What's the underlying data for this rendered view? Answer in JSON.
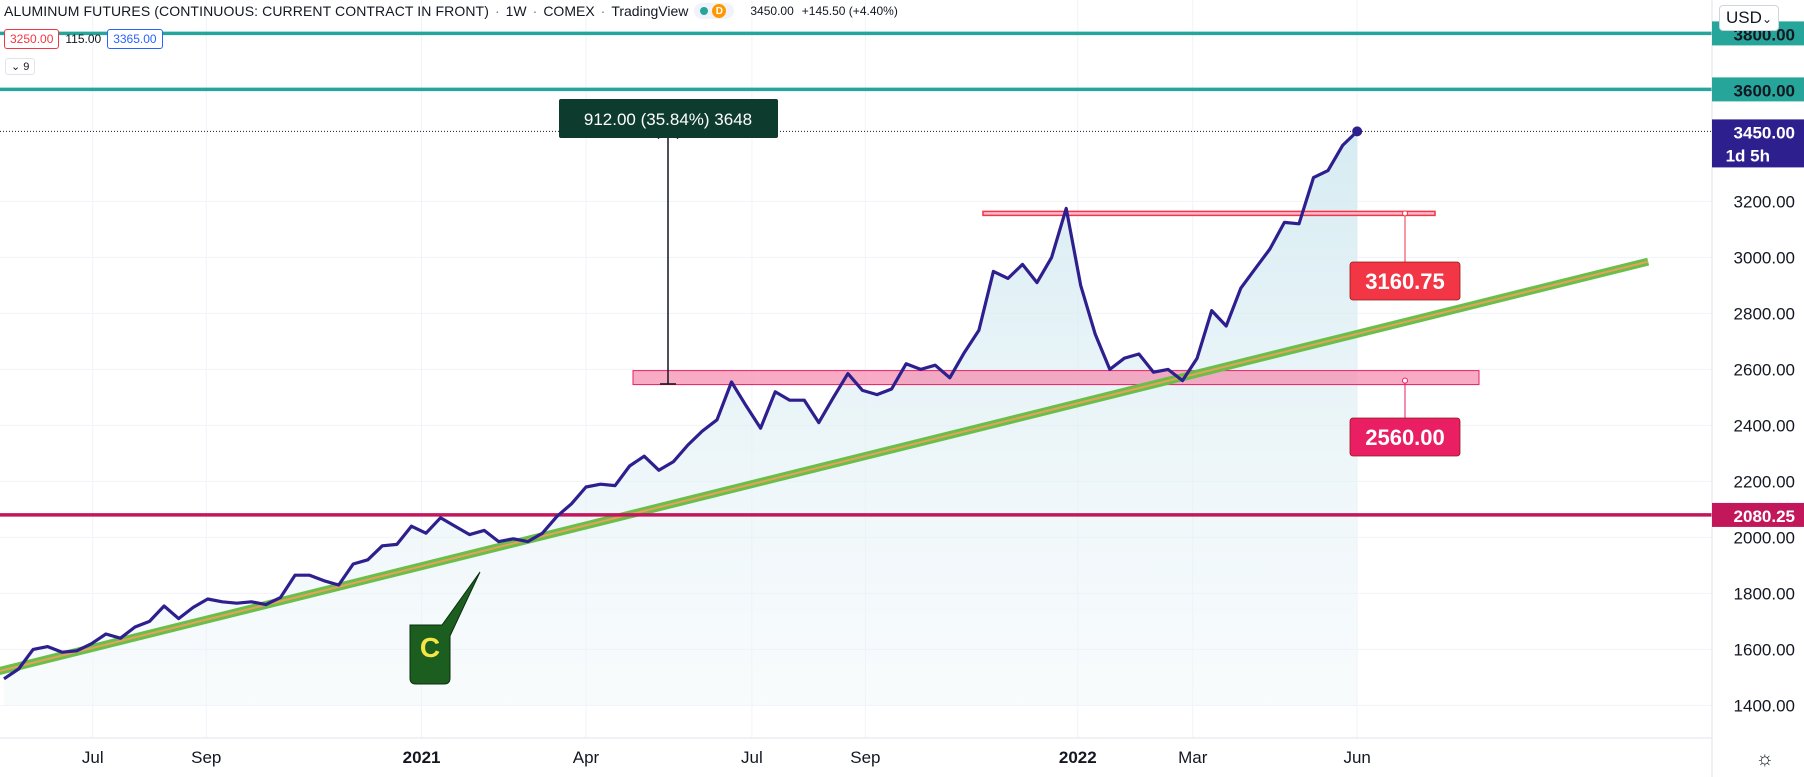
{
  "header": {
    "symbol_title": "ALUMINUM FUTURES (CONTINUOUS: CURRENT CONTRACT IN FRONT)",
    "interval": "1W",
    "exchange": "COMEX",
    "provider": "TradingView",
    "badge_letter": "D",
    "last_price": "3450.00",
    "change": "+145.50 (+4.40%)"
  },
  "quote_box": {
    "bid": "3250.00",
    "spread": "115.00",
    "ask": "3365.00"
  },
  "indicator_toggle": "9",
  "currency": "USD",
  "icons": {
    "settings": "gear-icon",
    "live": "live-dot-icon",
    "dropdown": "chevron-down-icon"
  },
  "colors": {
    "price_line": "#2e1f8f",
    "area_fill": "#d8ecf3",
    "teal_level": "#26a69a",
    "magenta_level": "#c2185b",
    "resistance": "#f23645",
    "support": "#e91e63",
    "trendline": "#6abf4b",
    "callout": "#1b5e20",
    "measure_label": "#0d3b2e"
  },
  "chart_data": {
    "type": "line",
    "title": "",
    "xlabel": "",
    "ylabel": "",
    "ylim": [
      1330,
      3950
    ],
    "x_tick_labels": [
      "Jul",
      "Sep",
      "2021",
      "Apr",
      "Jul",
      "Sep",
      "2022",
      "Mar",
      "Jun"
    ],
    "y_tick_labels": [
      "1400.00",
      "1600.00",
      "1800.00",
      "2000.00",
      "2200.00",
      "2400.00",
      "2600.00",
      "2800.00",
      "3000.00",
      "3200.00"
    ],
    "series": [
      {
        "x": [
          0,
          1,
          2,
          3,
          4,
          5,
          6,
          7,
          8,
          9,
          10,
          11,
          12,
          13,
          14,
          15,
          16,
          17,
          18,
          19,
          20,
          21,
          22,
          23,
          24,
          25,
          26,
          27,
          28,
          29,
          30,
          31,
          32,
          33,
          34,
          35,
          36,
          37,
          38,
          39,
          40,
          41,
          42,
          43,
          44,
          45,
          46,
          47,
          48,
          49,
          50,
          51,
          52,
          53,
          54,
          55,
          56,
          57,
          58,
          59,
          60,
          61,
          62,
          63,
          64,
          65,
          66,
          67,
          68,
          69,
          70,
          71,
          72,
          73,
          74,
          75,
          76,
          77,
          78,
          79,
          80,
          81,
          82,
          83,
          84,
          85,
          86,
          87,
          88,
          89
        ],
        "values": [
          1495,
          1530,
          1600,
          1610,
          1590,
          1595,
          1620,
          1655,
          1640,
          1680,
          1700,
          1755,
          1710,
          1750,
          1780,
          1770,
          1765,
          1770,
          1760,
          1785,
          1865,
          1865,
          1845,
          1830,
          1905,
          1920,
          1970,
          1975,
          2040,
          2015,
          2070,
          2040,
          2010,
          2025,
          1985,
          1995,
          1985,
          2015,
          2075,
          2120,
          2180,
          2190,
          2185,
          2255,
          2290,
          2240,
          2270,
          2330,
          2380,
          2420,
          2555,
          2470,
          2390,
          2520,
          2490,
          2490,
          2410,
          2500,
          2585,
          2525,
          2510,
          2530,
          2620,
          2600,
          2615,
          2570,
          2660,
          2740,
          2950,
          2925,
          2975,
          2910,
          3000,
          3175,
          2900,
          2725,
          2600,
          2640,
          2655,
          2590,
          2600,
          2560,
          2640,
          2810,
          2755,
          2890,
          2960,
          3030,
          3125,
          3120
        ]
      },
      {
        "x": [
          90,
          91,
          92,
          93
        ],
        "values": [
          3285,
          3310,
          3400,
          3450
        ]
      }
    ],
    "horizontal_levels": [
      {
        "label": "3800.00",
        "value": 3800
      },
      {
        "label": "3600.00",
        "value": 3600
      },
      {
        "label": "2080.25",
        "value": 2080.25
      }
    ],
    "last_price": {
      "label": "3450.00",
      "value": 3450,
      "countdown": "1d 5h"
    },
    "resistance_zone": {
      "label": "3160.75",
      "value": 3160.75
    },
    "support_zone": {
      "label": "2560.00",
      "value": 2560
    },
    "trendline": {
      "start": [
        -3,
        1488
      ],
      "end": [
        113,
        2985
      ]
    },
    "measure": {
      "label": "912.00 (35.84%) 3648",
      "from": 2548,
      "to": 3460,
      "x": 45
    },
    "callout": {
      "label": "C"
    },
    "grid": true
  }
}
